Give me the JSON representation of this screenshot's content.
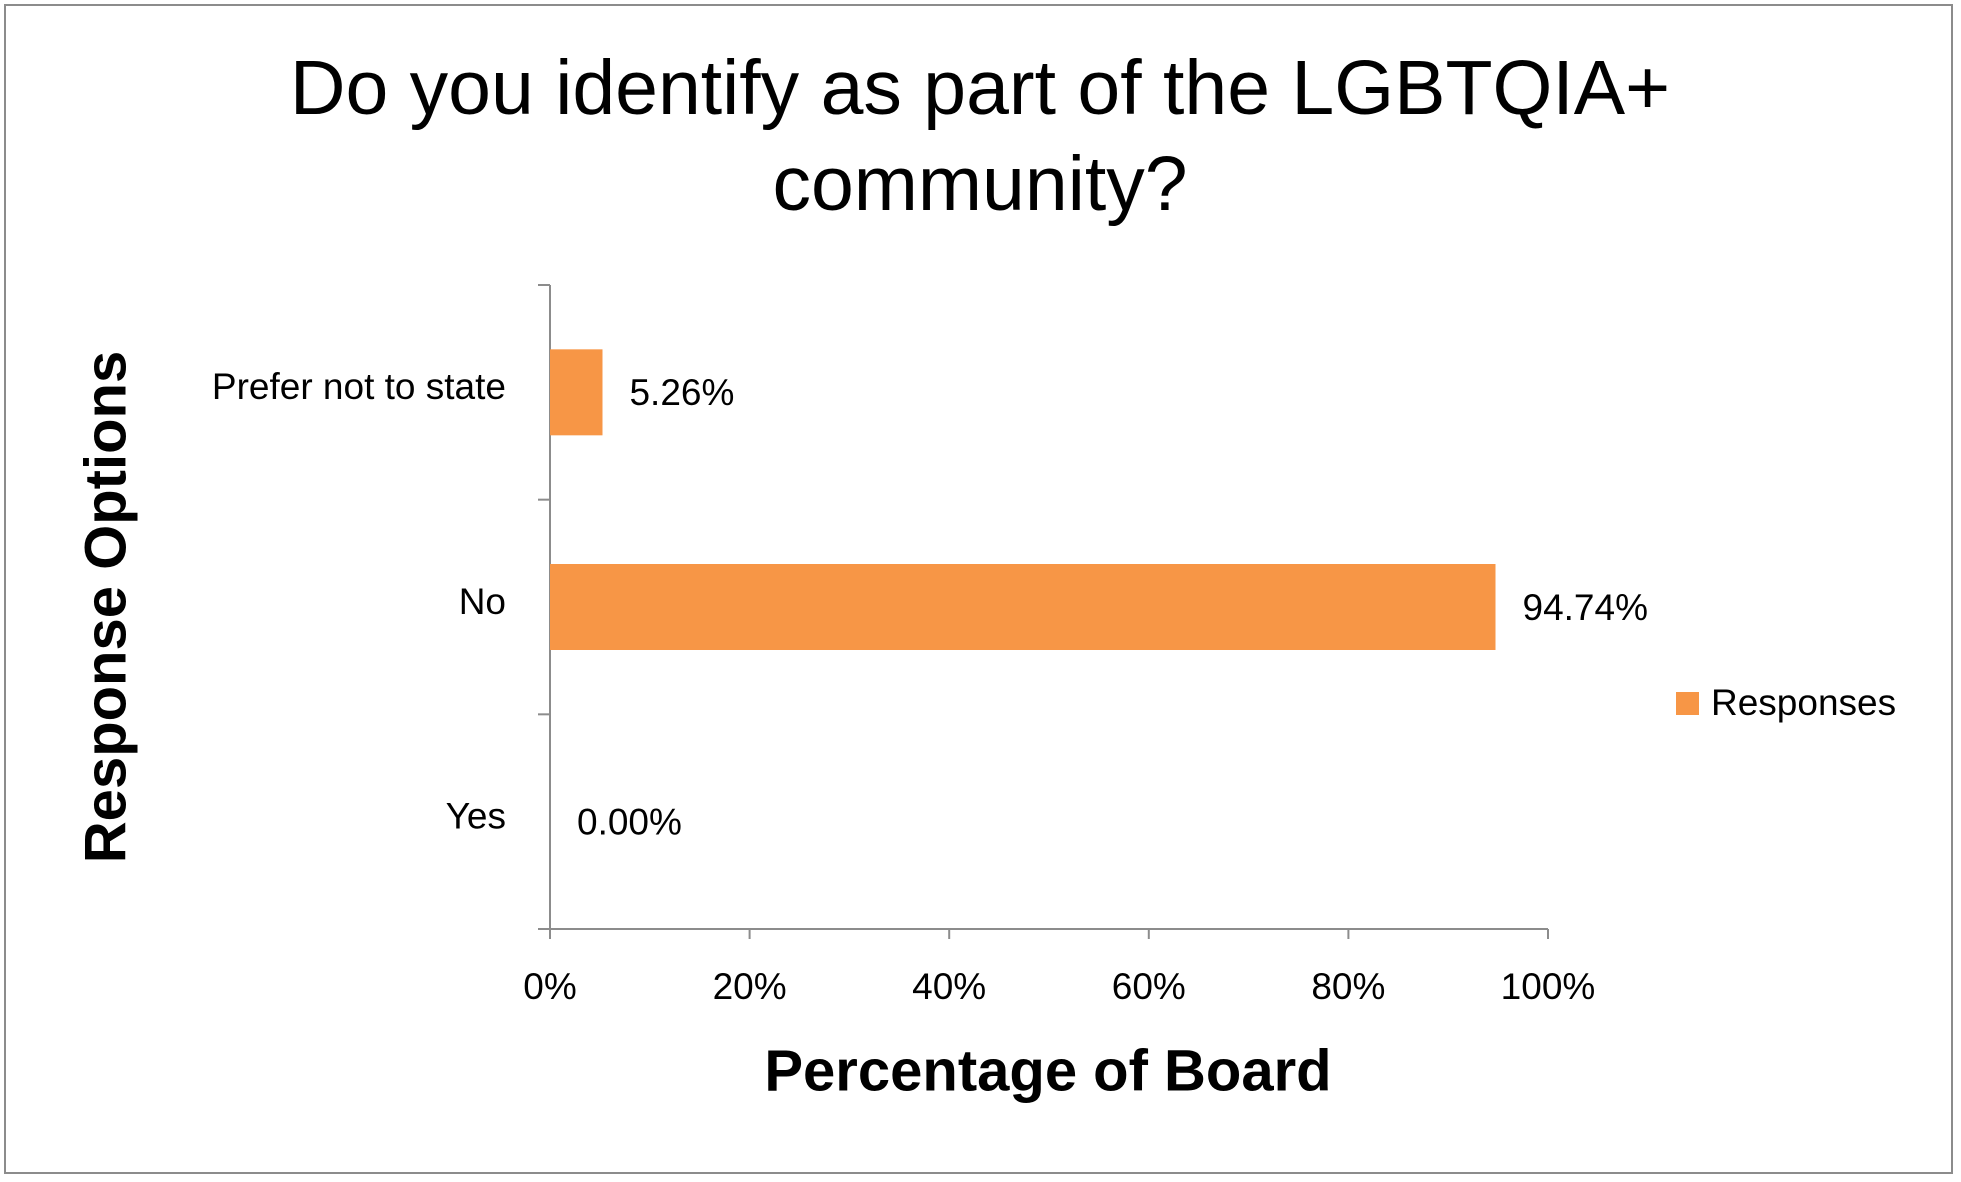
{
  "chart_data": {
    "type": "bar",
    "orientation": "horizontal",
    "title": "Do you identify as part of the LGBTQIA+ community?",
    "x_axis_label": "Percentage of Board",
    "y_axis_label": "Response Options",
    "categories": [
      "Yes",
      "No",
      "Prefer not to state"
    ],
    "series": [
      {
        "name": "Responses",
        "color": "#f79646",
        "values": [
          0,
          94.74,
          5.26
        ],
        "value_labels": [
          "0.00%",
          "94.74%",
          "5.26%"
        ]
      }
    ],
    "xlim": [
      0,
      100
    ],
    "xticks": [
      {
        "value": 0,
        "label": "0%"
      },
      {
        "value": 20,
        "label": "20%"
      },
      {
        "value": 40,
        "label": "40%"
      },
      {
        "value": 60,
        "label": "60%"
      },
      {
        "value": 80,
        "label": "80%"
      },
      {
        "value": 100,
        "label": "100%"
      }
    ],
    "grid": false,
    "legend": "right"
  }
}
